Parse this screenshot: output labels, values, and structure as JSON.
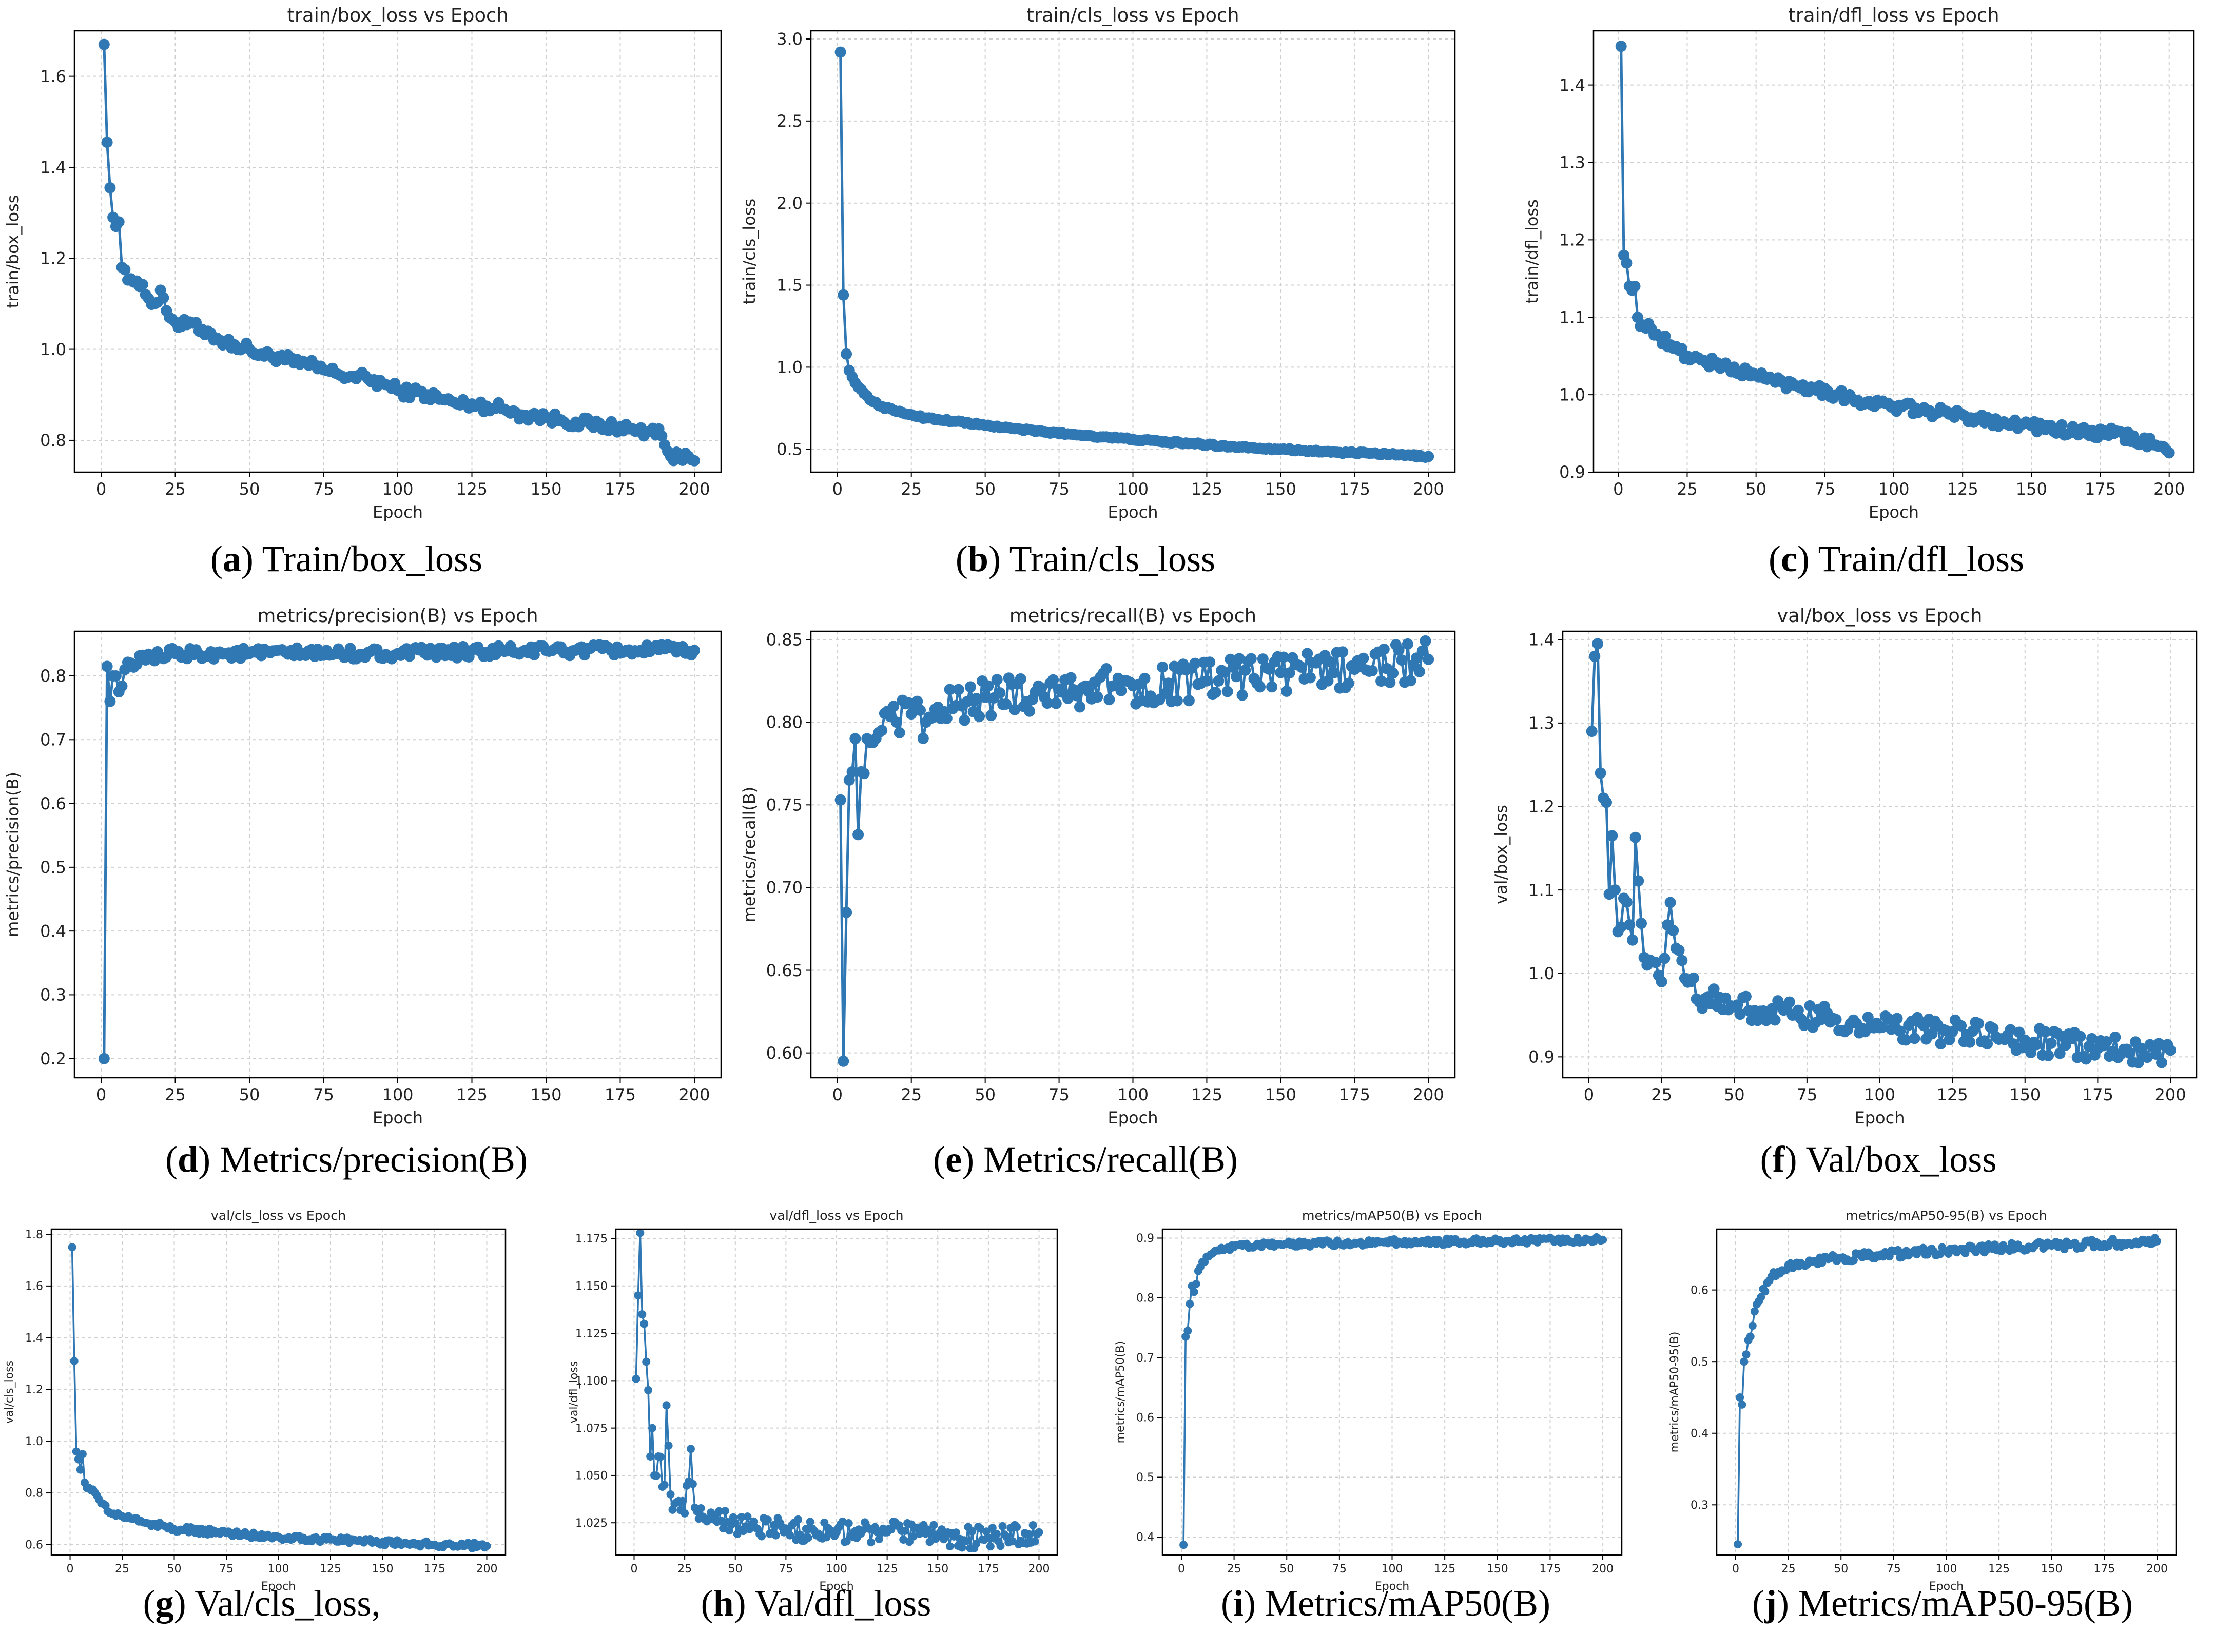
{
  "chart_data": [
    {
      "id": "a",
      "type": "line",
      "title": "train/box_loss vs Epoch",
      "xlabel": "Epoch",
      "ylabel": "train/box_loss",
      "xlim": [
        -9,
        209
      ],
      "ylim": [
        0.73,
        1.7
      ],
      "xticks": [
        0,
        25,
        50,
        75,
        100,
        125,
        150,
        175,
        200
      ],
      "yticks": [
        0.8,
        1.0,
        1.2,
        1.4,
        1.6
      ],
      "ydec": 1,
      "caption": {
        "letter": "a",
        "text": "Train/box_loss"
      },
      "key": [
        [
          1,
          1.67
        ],
        [
          2,
          1.455
        ],
        [
          3,
          1.355
        ],
        [
          4,
          1.29
        ],
        [
          5,
          1.27
        ],
        [
          6,
          1.28
        ],
        [
          7,
          1.18
        ],
        [
          8,
          1.175
        ],
        [
          10,
          1.155
        ],
        [
          12,
          1.15
        ],
        [
          15,
          1.12
        ],
        [
          18,
          1.1
        ],
        [
          20,
          1.13
        ],
        [
          22,
          1.085
        ],
        [
          25,
          1.06
        ],
        [
          27,
          1.05
        ],
        [
          30,
          1.06
        ],
        [
          33,
          1.04
        ],
        [
          36,
          1.04
        ],
        [
          40,
          1.02
        ],
        [
          45,
          1.01
        ],
        [
          50,
          1.0
        ],
        [
          55,
          0.985
        ],
        [
          60,
          0.985
        ],
        [
          65,
          0.97
        ],
        [
          70,
          0.965
        ],
        [
          75,
          0.955
        ],
        [
          80,
          0.945
        ],
        [
          85,
          0.94
        ],
        [
          90,
          0.935
        ],
        [
          95,
          0.925
        ],
        [
          100,
          0.91
        ],
        [
          105,
          0.905
        ],
        [
          110,
          0.9
        ],
        [
          115,
          0.89
        ],
        [
          120,
          0.88
        ],
        [
          125,
          0.88
        ],
        [
          130,
          0.875
        ],
        [
          135,
          0.87
        ],
        [
          140,
          0.86
        ],
        [
          145,
          0.855
        ],
        [
          150,
          0.85
        ],
        [
          155,
          0.845
        ],
        [
          160,
          0.84
        ],
        [
          165,
          0.835
        ],
        [
          170,
          0.83
        ],
        [
          175,
          0.83
        ],
        [
          180,
          0.82
        ],
        [
          185,
          0.82
        ],
        [
          188,
          0.825
        ],
        [
          190,
          0.79
        ],
        [
          192,
          0.765
        ],
        [
          195,
          0.76
        ],
        [
          198,
          0.765
        ],
        [
          200,
          0.755
        ]
      ],
      "noise": 0.013
    },
    {
      "id": "b",
      "type": "line",
      "title": "train/cls_loss vs Epoch",
      "xlabel": "Epoch",
      "ylabel": "train/cls_loss",
      "xlim": [
        -9,
        209
      ],
      "ylim": [
        0.36,
        3.05
      ],
      "xticks": [
        0,
        25,
        50,
        75,
        100,
        125,
        150,
        175,
        200
      ],
      "yticks": [
        0.5,
        1.0,
        1.5,
        2.0,
        2.5,
        3.0
      ],
      "ydec": 1,
      "caption": {
        "letter": "b",
        "text": "Train/cls_loss"
      },
      "key": [
        [
          1,
          2.92
        ],
        [
          2,
          1.44
        ],
        [
          3,
          1.08
        ],
        [
          4,
          0.98
        ],
        [
          5,
          0.94
        ],
        [
          7,
          0.88
        ],
        [
          9,
          0.84
        ],
        [
          12,
          0.79
        ],
        [
          15,
          0.76
        ],
        [
          20,
          0.73
        ],
        [
          25,
          0.71
        ],
        [
          30,
          0.69
        ],
        [
          40,
          0.67
        ],
        [
          50,
          0.645
        ],
        [
          60,
          0.625
        ],
        [
          70,
          0.605
        ],
        [
          80,
          0.59
        ],
        [
          90,
          0.575
        ],
        [
          100,
          0.56
        ],
        [
          110,
          0.545
        ],
        [
          120,
          0.535
        ],
        [
          130,
          0.52
        ],
        [
          140,
          0.51
        ],
        [
          150,
          0.5
        ],
        [
          160,
          0.49
        ],
        [
          170,
          0.48
        ],
        [
          180,
          0.475
        ],
        [
          190,
          0.465
        ],
        [
          200,
          0.455
        ]
      ],
      "noise": 0.006
    },
    {
      "id": "c",
      "type": "line",
      "title": "train/dfl_loss vs Epoch",
      "xlabel": "Epoch",
      "ylabel": "train/dfl_loss",
      "xlim": [
        -9,
        209
      ],
      "ylim": [
        0.9,
        1.47
      ],
      "xticks": [
        0,
        25,
        50,
        75,
        100,
        125,
        150,
        175,
        200
      ],
      "yticks": [
        0.9,
        1.0,
        1.1,
        1.2,
        1.3,
        1.4
      ],
      "ydec": 1,
      "caption": {
        "letter": "c",
        "text": "Train/dfl_loss"
      },
      "key": [
        [
          1,
          1.45
        ],
        [
          2,
          1.18
        ],
        [
          3,
          1.17
        ],
        [
          4,
          1.14
        ],
        [
          5,
          1.135
        ],
        [
          6,
          1.14
        ],
        [
          7,
          1.1
        ],
        [
          9,
          1.09
        ],
        [
          12,
          1.085
        ],
        [
          15,
          1.075
        ],
        [
          20,
          1.06
        ],
        [
          25,
          1.05
        ],
        [
          30,
          1.045
        ],
        [
          40,
          1.035
        ],
        [
          50,
          1.025
        ],
        [
          60,
          1.015
        ],
        [
          70,
          1.01
        ],
        [
          80,
          1.0
        ],
        [
          90,
          0.99
        ],
        [
          100,
          0.985
        ],
        [
          110,
          0.98
        ],
        [
          120,
          0.975
        ],
        [
          130,
          0.97
        ],
        [
          140,
          0.965
        ],
        [
          150,
          0.96
        ],
        [
          160,
          0.955
        ],
        [
          170,
          0.95
        ],
        [
          180,
          0.95
        ],
        [
          190,
          0.94
        ],
        [
          195,
          0.935
        ],
        [
          200,
          0.925
        ]
      ],
      "noise": 0.007
    },
    {
      "id": "d",
      "type": "line",
      "title": "metrics/precision(B) vs Epoch",
      "xlabel": "Epoch",
      "ylabel": "metrics/precision(B)",
      "xlim": [
        -9,
        209
      ],
      "ylim": [
        0.17,
        0.87
      ],
      "xticks": [
        0,
        25,
        50,
        75,
        100,
        125,
        150,
        175,
        200
      ],
      "yticks": [
        0.2,
        0.3,
        0.4,
        0.5,
        0.6,
        0.7,
        0.8
      ],
      "ydec": 1,
      "caption": {
        "letter": "d",
        "text": "Metrics/precision(B)"
      },
      "key": [
        [
          1,
          0.2
        ],
        [
          2,
          0.815
        ],
        [
          3,
          0.76
        ],
        [
          4,
          0.8
        ],
        [
          5,
          0.8
        ],
        [
          6,
          0.775
        ],
        [
          8,
          0.81
        ],
        [
          10,
          0.82
        ],
        [
          15,
          0.825
        ],
        [
          20,
          0.83
        ],
        [
          25,
          0.835
        ],
        [
          50,
          0.835
        ],
        [
          100,
          0.835
        ],
        [
          150,
          0.84
        ],
        [
          200,
          0.84
        ]
      ],
      "noise": 0.009
    },
    {
      "id": "e",
      "type": "line",
      "title": "metrics/recall(B) vs Epoch",
      "xlabel": "Epoch",
      "ylabel": "metrics/recall(B)",
      "xlim": [
        -9,
        209
      ],
      "ylim": [
        0.585,
        0.855
      ],
      "xticks": [
        0,
        25,
        50,
        75,
        100,
        125,
        150,
        175,
        200
      ],
      "yticks": [
        0.6,
        0.65,
        0.7,
        0.75,
        0.8,
        0.85
      ],
      "ydec": 2,
      "caption": {
        "letter": "e",
        "text": "Metrics/recall(B)"
      },
      "key": [
        [
          1,
          0.753
        ],
        [
          2,
          0.595
        ],
        [
          3,
          0.685
        ],
        [
          4,
          0.765
        ],
        [
          5,
          0.77
        ],
        [
          6,
          0.79
        ],
        [
          7,
          0.732
        ],
        [
          8,
          0.77
        ],
        [
          10,
          0.79
        ],
        [
          15,
          0.795
        ],
        [
          20,
          0.8
        ],
        [
          25,
          0.805
        ],
        [
          30,
          0.8
        ],
        [
          40,
          0.81
        ],
        [
          50,
          0.815
        ],
        [
          75,
          0.82
        ],
        [
          100,
          0.822
        ],
        [
          125,
          0.825
        ],
        [
          150,
          0.83
        ],
        [
          175,
          0.832
        ],
        [
          200,
          0.838
        ]
      ],
      "noise": 0.012
    },
    {
      "id": "f",
      "type": "line",
      "title": "val/box_loss vs Epoch",
      "xlabel": "Epoch",
      "ylabel": "val/box_loss",
      "xlim": [
        -9,
        209
      ],
      "ylim": [
        0.875,
        1.41
      ],
      "xticks": [
        0,
        25,
        50,
        75,
        100,
        125,
        150,
        175,
        200
      ],
      "yticks": [
        0.9,
        1.0,
        1.1,
        1.2,
        1.3,
        1.4
      ],
      "ydec": 1,
      "caption": {
        "letter": "f",
        "text": "Val/box_loss"
      },
      "key": [
        [
          1,
          1.29
        ],
        [
          2,
          1.38
        ],
        [
          3,
          1.395
        ],
        [
          4,
          1.24
        ],
        [
          5,
          1.21
        ],
        [
          6,
          1.205
        ],
        [
          7,
          1.095
        ],
        [
          8,
          1.165
        ],
        [
          9,
          1.1
        ],
        [
          10,
          1.05
        ],
        [
          12,
          1.09
        ],
        [
          15,
          1.04
        ],
        [
          16,
          1.163
        ],
        [
          18,
          1.06
        ],
        [
          20,
          1.01
        ],
        [
          25,
          0.99
        ],
        [
          28,
          1.085
        ],
        [
          30,
          1.03
        ],
        [
          35,
          0.99
        ],
        [
          40,
          0.97
        ],
        [
          50,
          0.96
        ],
        [
          60,
          0.955
        ],
        [
          70,
          0.95
        ],
        [
          80,
          0.945
        ],
        [
          90,
          0.94
        ],
        [
          100,
          0.935
        ],
        [
          125,
          0.93
        ],
        [
          150,
          0.92
        ],
        [
          175,
          0.91
        ],
        [
          200,
          0.908
        ]
      ],
      "noise": 0.016
    },
    {
      "id": "g",
      "type": "line",
      "title": "val/cls_loss vs Epoch",
      "xlabel": "Epoch",
      "ylabel": "val/cls_loss",
      "xlim": [
        -9,
        209
      ],
      "ylim": [
        0.56,
        1.82
      ],
      "xticks": [
        0,
        25,
        50,
        75,
        100,
        125,
        150,
        175,
        200
      ],
      "yticks": [
        0.6,
        0.8,
        1.0,
        1.2,
        1.4,
        1.6,
        1.8
      ],
      "ydec": 1,
      "caption": {
        "letter": "g",
        "text": "Val/cls_loss,"
      },
      "key": [
        [
          1,
          1.75
        ],
        [
          2,
          1.31
        ],
        [
          3,
          0.96
        ],
        [
          4,
          0.93
        ],
        [
          5,
          0.89
        ],
        [
          6,
          0.95
        ],
        [
          7,
          0.84
        ],
        [
          9,
          0.82
        ],
        [
          12,
          0.8
        ],
        [
          15,
          0.76
        ],
        [
          20,
          0.72
        ],
        [
          25,
          0.71
        ],
        [
          30,
          0.7
        ],
        [
          40,
          0.68
        ],
        [
          50,
          0.66
        ],
        [
          75,
          0.645
        ],
        [
          100,
          0.63
        ],
        [
          125,
          0.62
        ],
        [
          150,
          0.61
        ],
        [
          175,
          0.6
        ],
        [
          200,
          0.595
        ]
      ],
      "noise": 0.012
    },
    {
      "id": "h",
      "type": "line",
      "title": "val/dfl_loss vs Epoch",
      "xlabel": "Epoch",
      "ylabel": "val/dfl_loss",
      "xlim": [
        -9,
        209
      ],
      "ylim": [
        1.008,
        1.18
      ],
      "xticks": [
        0,
        25,
        50,
        75,
        100,
        125,
        150,
        175,
        200
      ],
      "yticks": [
        1.025,
        1.05,
        1.075,
        1.1,
        1.125,
        1.15,
        1.175
      ],
      "ydec": 3,
      "caption": {
        "letter": "h",
        "text": "Val/dfl_loss"
      },
      "key": [
        [
          1,
          1.101
        ],
        [
          2,
          1.145
        ],
        [
          3,
          1.178
        ],
        [
          4,
          1.135
        ],
        [
          5,
          1.13
        ],
        [
          6,
          1.11
        ],
        [
          7,
          1.095
        ],
        [
          8,
          1.06
        ],
        [
          9,
          1.075
        ],
        [
          10,
          1.05
        ],
        [
          12,
          1.06
        ],
        [
          15,
          1.045
        ],
        [
          16,
          1.087
        ],
        [
          18,
          1.04
        ],
        [
          20,
          1.035
        ],
        [
          25,
          1.03
        ],
        [
          28,
          1.064
        ],
        [
          30,
          1.033
        ],
        [
          40,
          1.028
        ],
        [
          50,
          1.025
        ],
        [
          75,
          1.022
        ],
        [
          100,
          1.02
        ],
        [
          125,
          1.02
        ],
        [
          150,
          1.018
        ],
        [
          175,
          1.017
        ],
        [
          200,
          1.02
        ]
      ],
      "noise": 0.006
    },
    {
      "id": "i",
      "type": "line",
      "title": "metrics/mAP50(B) vs Epoch",
      "xlabel": "Epoch",
      "ylabel": "metrics/mAP50(B)",
      "xlim": [
        -9,
        209
      ],
      "ylim": [
        0.37,
        0.915
      ],
      "xticks": [
        0,
        25,
        50,
        75,
        100,
        125,
        150,
        175,
        200
      ],
      "yticks": [
        0.4,
        0.5,
        0.6,
        0.7,
        0.8,
        0.9
      ],
      "ydec": 1,
      "caption": {
        "letter": "i",
        "text": "Metrics/mAP50(B)"
      },
      "key": [
        [
          1,
          0.387
        ],
        [
          2,
          0.735
        ],
        [
          3,
          0.745
        ],
        [
          4,
          0.79
        ],
        [
          5,
          0.82
        ],
        [
          6,
          0.81
        ],
        [
          8,
          0.845
        ],
        [
          10,
          0.86
        ],
        [
          15,
          0.875
        ],
        [
          20,
          0.88
        ],
        [
          25,
          0.885
        ],
        [
          50,
          0.89
        ],
        [
          100,
          0.893
        ],
        [
          150,
          0.895
        ],
        [
          200,
          0.897
        ]
      ],
      "noise": 0.005
    },
    {
      "id": "j",
      "type": "line",
      "title": "metrics/mAP50-95(B) vs Epoch",
      "xlabel": "Epoch",
      "ylabel": "metrics/mAP50-95(B)",
      "xlim": [
        -9,
        209
      ],
      "ylim": [
        0.23,
        0.685
      ],
      "xticks": [
        0,
        25,
        50,
        75,
        100,
        125,
        150,
        175,
        200
      ],
      "yticks": [
        0.3,
        0.4,
        0.5,
        0.6
      ],
      "ydec": 1,
      "caption": {
        "letter": "j",
        "text": "Metrics/mAP50-95(B)"
      },
      "key": [
        [
          1,
          0.245
        ],
        [
          2,
          0.45
        ],
        [
          3,
          0.44
        ],
        [
          4,
          0.5
        ],
        [
          5,
          0.51
        ],
        [
          6,
          0.53
        ],
        [
          8,
          0.55
        ],
        [
          10,
          0.58
        ],
        [
          12,
          0.59
        ],
        [
          15,
          0.61
        ],
        [
          20,
          0.625
        ],
        [
          25,
          0.635
        ],
        [
          50,
          0.645
        ],
        [
          100,
          0.655
        ],
        [
          150,
          0.662
        ],
        [
          200,
          0.668
        ]
      ],
      "noise": 0.006
    }
  ],
  "colors": {
    "line": "#2f78b4",
    "grid": "#cfcfcf",
    "axis": "#000000"
  }
}
